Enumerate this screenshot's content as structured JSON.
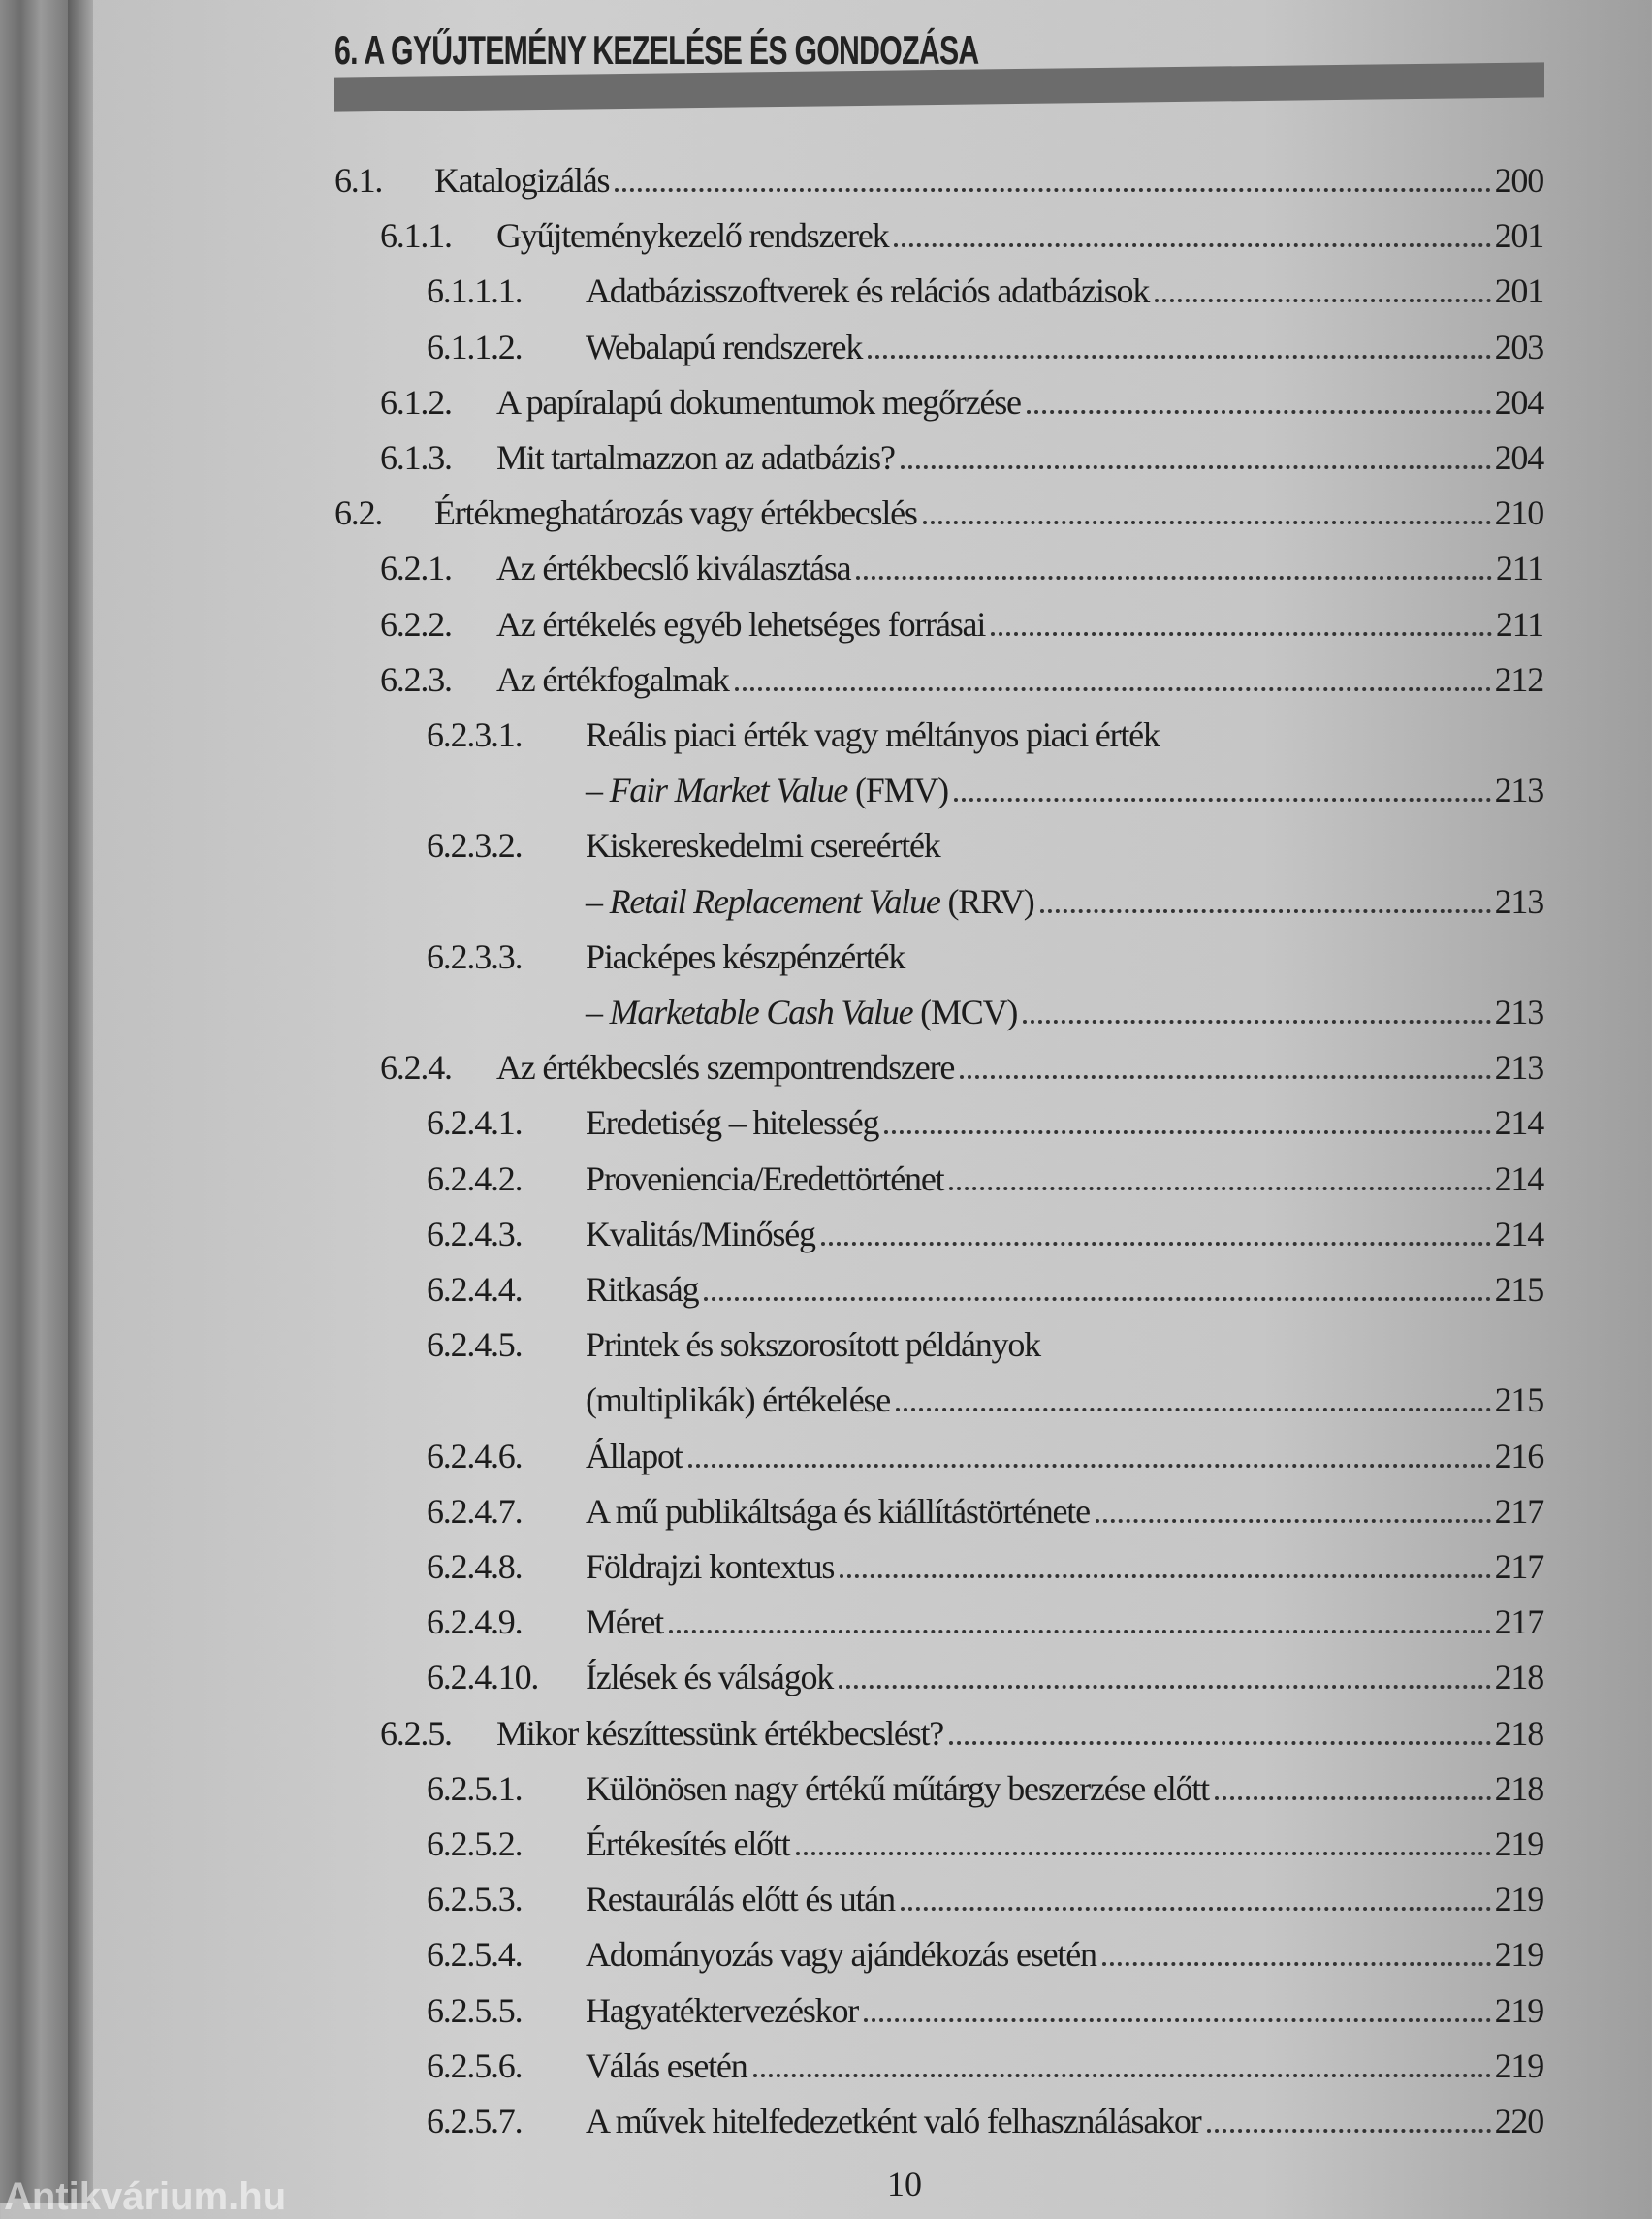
{
  "chapter_title": "6. A GYŰJTEMÉNY KEZELÉSE ÉS GONDOZÁSA",
  "page_number": "10",
  "watermark": "Antikvárium.hu",
  "entries": [
    {
      "num": "6.1.",
      "level": 1,
      "title": "Katalogizálás",
      "page": "200"
    },
    {
      "num": "6.1.1.",
      "level": 2,
      "title": "Gyűjteménykezelő rendszerek",
      "page": "201"
    },
    {
      "num": "6.1.1.1.",
      "level": 3,
      "title": "Adatbázisszoftverek és relációs adatbázisok",
      "page": "201"
    },
    {
      "num": "6.1.1.2.",
      "level": 3,
      "title": "Webalapú rendszerek",
      "page": "203"
    },
    {
      "num": "6.1.2.",
      "level": 2,
      "title": "A papíralapú dokumentumok megőrzése",
      "page": "204"
    },
    {
      "num": "6.1.3.",
      "level": 2,
      "title": "Mit tartalmazzon az adatbázis?",
      "page": "204"
    },
    {
      "num": "6.2.",
      "level": 1,
      "title": "Értékmeghatározás vagy értékbecslés",
      "page": "210"
    },
    {
      "num": "6.2.1.",
      "level": 2,
      "title": "Az értékbecslő kiválasztása",
      "page": "211"
    },
    {
      "num": "6.2.2.",
      "level": 2,
      "title": "Az értékelés egyéb lehetséges forrásai",
      "page": "211"
    },
    {
      "num": "6.2.3.",
      "level": 2,
      "title": "Az értékfogalmak",
      "page": "212"
    },
    {
      "num": "6.2.3.1.",
      "level": 3,
      "title": "Reális piaci érték vagy méltányos piaci érték",
      "cont": {
        "pre": "– ",
        "em": "Fair Market Value",
        "post": " (FMV)"
      },
      "page": "213"
    },
    {
      "num": "6.2.3.2.",
      "level": 3,
      "title": "Kiskereskedelmi csereérték",
      "cont": {
        "pre": "– ",
        "em": "Retail Replacement Value",
        "post": " (RRV)"
      },
      "page": "213"
    },
    {
      "num": "6.2.3.3.",
      "level": 3,
      "title": "Piacképes készpénzérték",
      "cont": {
        "pre": "– ",
        "em": "Marketable Cash Value",
        "post": " (MCV)"
      },
      "page": "213"
    },
    {
      "num": "6.2.4.",
      "level": 2,
      "title": "Az értékbecslés szempontrendszere",
      "page": "213"
    },
    {
      "num": "6.2.4.1.",
      "level": 3,
      "title": "Eredetiség – hitelesség",
      "page": "214"
    },
    {
      "num": "6.2.4.2.",
      "level": 3,
      "title": "Proveniencia/Eredettörténet",
      "page": "214"
    },
    {
      "num": "6.2.4.3.",
      "level": 3,
      "title": "Kvalitás/Minőség",
      "page": "214"
    },
    {
      "num": "6.2.4.4.",
      "level": 3,
      "title": "Ritkaság",
      "page": "215"
    },
    {
      "num": "6.2.4.5.",
      "level": 3,
      "title": "Printek és sokszorosított példányok",
      "cont": {
        "pre": "(multiplikák) értékelése",
        "em": "",
        "post": ""
      },
      "page": "215"
    },
    {
      "num": "6.2.4.6.",
      "level": 3,
      "title": "Állapot",
      "page": "216"
    },
    {
      "num": "6.2.4.7.",
      "level": 3,
      "title": "A mű publikáltsága és kiállítástörténete",
      "page": "217"
    },
    {
      "num": "6.2.4.8.",
      "level": 3,
      "title": "Földrajzi kontextus",
      "page": "217"
    },
    {
      "num": "6.2.4.9.",
      "level": 3,
      "title": "Méret",
      "page": "217"
    },
    {
      "num": "6.2.4.10.",
      "level": 3,
      "title": "Ízlések és válságok",
      "page": "218"
    },
    {
      "num": "6.2.5.",
      "level": 2,
      "title": "Mikor készíttessünk értékbecslést?",
      "page": "218"
    },
    {
      "num": "6.2.5.1.",
      "level": 3,
      "title": "Különösen nagy értékű műtárgy beszerzése előtt",
      "page": "218"
    },
    {
      "num": "6.2.5.2.",
      "level": 3,
      "title": "Értékesítés előtt",
      "page": "219"
    },
    {
      "num": "6.2.5.3.",
      "level": 3,
      "title": "Restaurálás előtt és után",
      "page": "219"
    },
    {
      "num": "6.2.5.4.",
      "level": 3,
      "title": "Adományozás vagy ajándékozás esetén",
      "page": "219"
    },
    {
      "num": "6.2.5.5.",
      "level": 3,
      "title": "Hagyatéktervezéskor",
      "page": "219"
    },
    {
      "num": "6.2.5.6.",
      "level": 3,
      "title": "Válás esetén",
      "page": "219"
    },
    {
      "num": "6.2.5.7.",
      "level": 3,
      "title": "A művek hitelfedezetként való felhasználásakor",
      "page": "220"
    }
  ]
}
